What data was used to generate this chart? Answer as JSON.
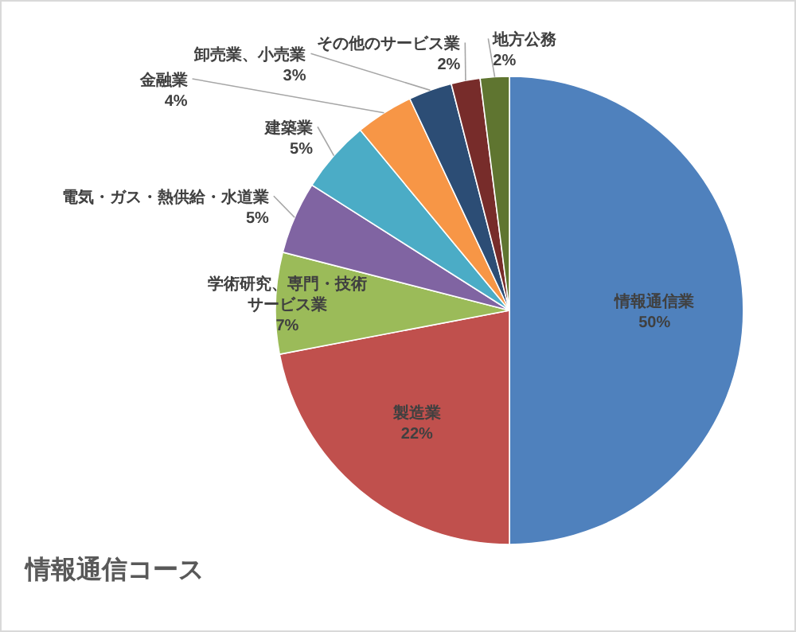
{
  "chart_data": {
    "type": "pie",
    "title": "情報通信コース",
    "categories": [
      "情報通信業",
      "製造業",
      "学術研究、専門・技術サービス業",
      "電気・ガス・熱供給・水道業",
      "建築業",
      "金融業",
      "卸売業、小売業",
      "その他のサービス業",
      "地方公務"
    ],
    "values": [
      50,
      22,
      7,
      5,
      5,
      4,
      3,
      2,
      2
    ],
    "value_labels": [
      "50%",
      "22%",
      "7%",
      "5%",
      "5%",
      "4%",
      "3%",
      "2%",
      "2%"
    ],
    "colors": [
      "#4f81bd",
      "#c0504d",
      "#9bbb59",
      "#8064a2",
      "#4bacc6",
      "#f79646",
      "#2c4d75",
      "#772c2a",
      "#5f7530"
    ]
  }
}
